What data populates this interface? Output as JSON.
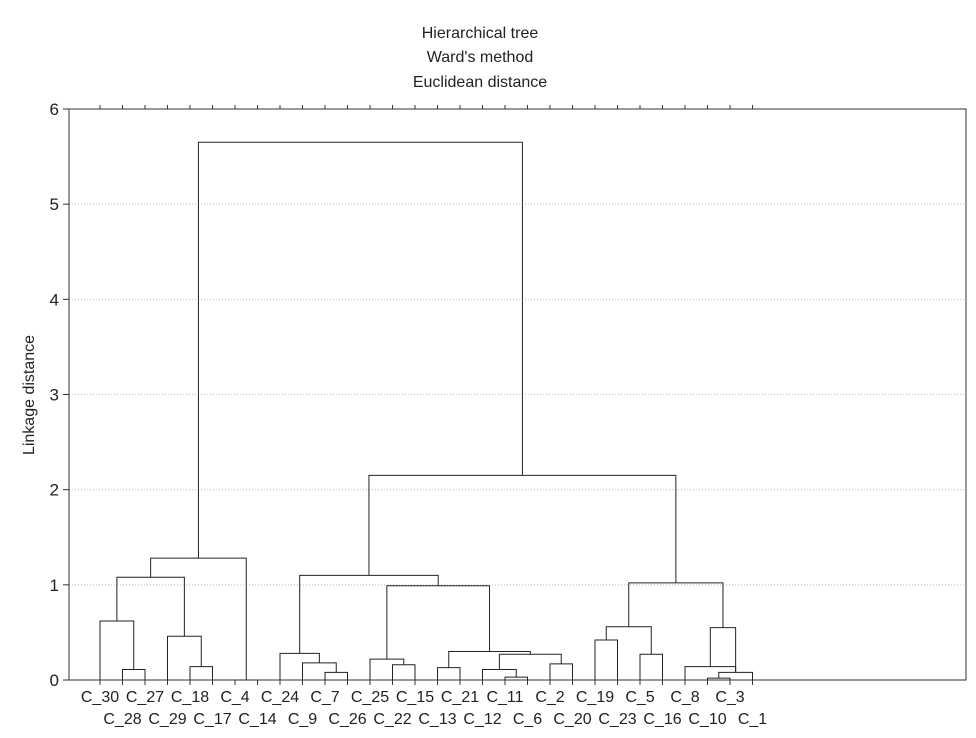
{
  "chart_data": {
    "type": "dendrogram",
    "title_lines": [
      "Hierarchical tree",
      "Ward's method",
      "Euclidean distance"
    ],
    "xlabel": "",
    "ylabel": "Linkage distance",
    "ylim": [
      0,
      6
    ],
    "yticks": [
      0,
      1,
      2,
      3,
      4,
      5,
      6
    ],
    "grid": "horizontal dotted",
    "leaves": [
      "C_30",
      "C_28",
      "C_27",
      "C_29",
      "C_18",
      "C_17",
      "C_4",
      "C_14",
      "C_24",
      "C_9",
      "C_7",
      "C_26",
      "C_25",
      "C_22",
      "C_15",
      "C_13",
      "C_21",
      "C_12",
      "C_11",
      "C_6",
      "C_2",
      "C_20",
      "C_19",
      "C_23",
      "C_5",
      "C_16",
      "C_8",
      "C_10",
      "C_3",
      "C_1"
    ],
    "merges": [
      {
        "a": "C_28",
        "b": "C_27",
        "height": 0.11
      },
      {
        "a": "C_30",
        "b": "C_28+C_27",
        "height": 0.62
      },
      {
        "a": "C_17",
        "b": "C_18",
        "height": 0.14
      },
      {
        "a": "C_29",
        "b": "C_17+C_18",
        "height": 0.46
      },
      {
        "a": "C_30-group",
        "b": "C_29-group",
        "height": 1.08
      },
      {
        "a": "C_14",
        "b": "C_4",
        "height": 0.0
      },
      {
        "a": "left-group",
        "b": "C_4+C_14",
        "height": 1.28
      },
      {
        "a": "C_26",
        "b": "C_7",
        "height": 0.08
      },
      {
        "a": "C_9",
        "b": "C_26+C_7",
        "height": 0.18
      },
      {
        "a": "C_24",
        "b": "C_9-group",
        "height": 0.28
      },
      {
        "a": "C_22",
        "b": "C_15",
        "height": 0.16
      },
      {
        "a": "C_25",
        "b": "C_22+C_15",
        "height": 0.22
      },
      {
        "a": "C_13",
        "b": "C_21",
        "height": 0.13
      },
      {
        "a": "C_11",
        "b": "C_6",
        "height": 0.03
      },
      {
        "a": "C_12",
        "b": "C_11+C_6",
        "height": 0.11
      },
      {
        "a": "C_2",
        "b": "C_20",
        "height": 0.17
      },
      {
        "a": "C_12-group",
        "b": "C_2+C_20",
        "height": 0.27
      },
      {
        "a": "C_13+C_21",
        "b": "C_12-group",
        "height": 0.3
      },
      {
        "a": "C_25-group",
        "b": "C_13-group",
        "height": 0.99
      },
      {
        "a": "C_24-group",
        "b": "C_25-group",
        "height": 1.1
      },
      {
        "a": "C_19",
        "b": "C_23",
        "height": 0.42
      },
      {
        "a": "C_5",
        "b": "C_16",
        "height": 0.27
      },
      {
        "a": "C_19+C_23",
        "b": "C_5+C_16",
        "height": 0.56
      },
      {
        "a": "C_10",
        "b": "C_3",
        "height": 0.02
      },
      {
        "a": "C_1",
        "b": "C_10+C_3",
        "height": 0.08
      },
      {
        "a": "C_8",
        "b": "C_1-group",
        "height": 0.14
      },
      {
        "a": "C_8-group",
        "b": "C_10-group",
        "height": 0.55
      },
      {
        "a": "C_19-group",
        "b": "C_8-group",
        "height": 1.02
      },
      {
        "a": "middle-group",
        "b": "right-group",
        "height": 2.15
      },
      {
        "a": "left-group",
        "b": "middle+right",
        "height": 5.65
      }
    ]
  }
}
